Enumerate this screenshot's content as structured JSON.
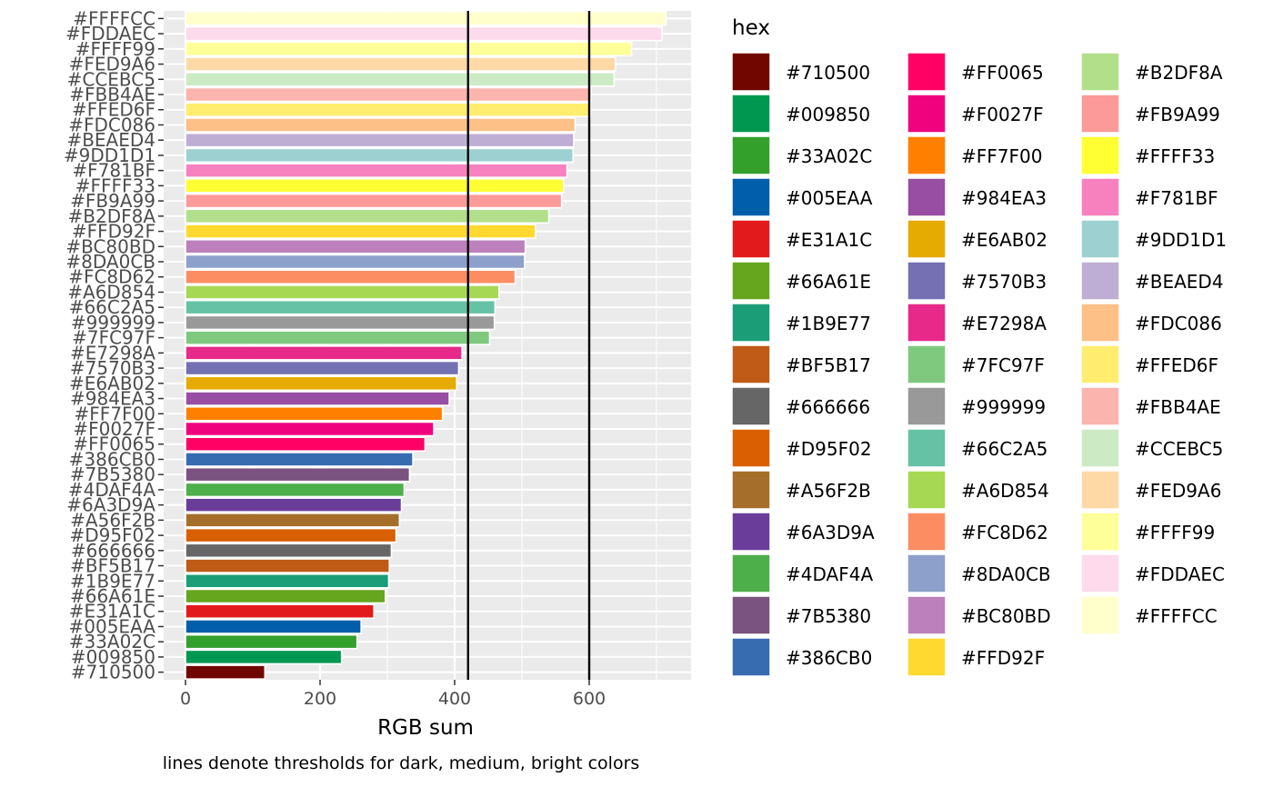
{
  "chart_data": {
    "type": "bar",
    "orientation": "horizontal",
    "xlabel": "RGB sum",
    "ylabel": "",
    "caption": "lines denote thresholds for dark, medium, bright colors",
    "xlim": [
      -18,
      750
    ],
    "xticks": [
      0,
      200,
      400,
      600
    ],
    "thresholds": [
      420,
      600
    ],
    "legend_title": "hex",
    "legend_position": "right",
    "grid": true,
    "categories": [
      "#710500",
      "#009850",
      "#33A02C",
      "#005EAA",
      "#E31A1C",
      "#66A61E",
      "#1B9E77",
      "#BF5B17",
      "#666666",
      "#D95F02",
      "#A56F2B",
      "#6A3D9A",
      "#4DAF4A",
      "#7B5380",
      "#386CB0",
      "#FF0065",
      "#F0027F",
      "#FF7F00",
      "#984EA3",
      "#E6AB02",
      "#7570B3",
      "#E7298A",
      "#7FC97F",
      "#999999",
      "#66C2A5",
      "#A6D854",
      "#FC8D62",
      "#8DA0CB",
      "#BC80BD",
      "#FFD92F",
      "#B2DF8A",
      "#FB9A99",
      "#FFFF33",
      "#F781BF",
      "#9DD1D1",
      "#BEAED4",
      "#FDC086",
      "#FFED6F",
      "#FBB4AE",
      "#CCEBC5",
      "#FED9A6",
      "#FFFF99",
      "#FDDAEC",
      "#FFFFCC"
    ],
    "values": [
      118,
      232,
      255,
      261,
      280,
      297,
      302,
      303,
      306,
      313,
      318,
      321,
      325,
      333,
      338,
      356,
      369,
      382,
      392,
      403,
      406,
      411,
      452,
      459,
      460,
      466,
      490,
      504,
      505,
      520,
      540,
      559,
      562,
      567,
      576,
      577,
      579,
      602,
      603,
      637,
      639,
      663,
      708,
      714
    ],
    "legend_entries": [
      "#710500",
      "#009850",
      "#33A02C",
      "#005EAA",
      "#E31A1C",
      "#66A61E",
      "#1B9E77",
      "#BF5B17",
      "#666666",
      "#D95F02",
      "#A56F2B",
      "#6A3D9A",
      "#4DAF4A",
      "#7B5380",
      "#386CB0",
      "#FF0065",
      "#F0027F",
      "#FF7F00",
      "#984EA3",
      "#E6AB02",
      "#7570B3",
      "#E7298A",
      "#7FC97F",
      "#999999",
      "#66C2A5",
      "#A6D854",
      "#FC8D62",
      "#8DA0CB",
      "#BC80BD",
      "#FFD92F",
      "#B2DF8A",
      "#FB9A99",
      "#FFFF33",
      "#F781BF",
      "#9DD1D1",
      "#BEAED4",
      "#FDC086",
      "#FFED6F",
      "#FBB4AE",
      "#CCEBC5",
      "#FED9A6",
      "#FFFF99",
      "#FDDAEC",
      "#FFFFCC"
    ],
    "panel_background": "#EBEBEB",
    "gridline_color": "#FFFFFF",
    "threshold_line_color": "#000000"
  }
}
